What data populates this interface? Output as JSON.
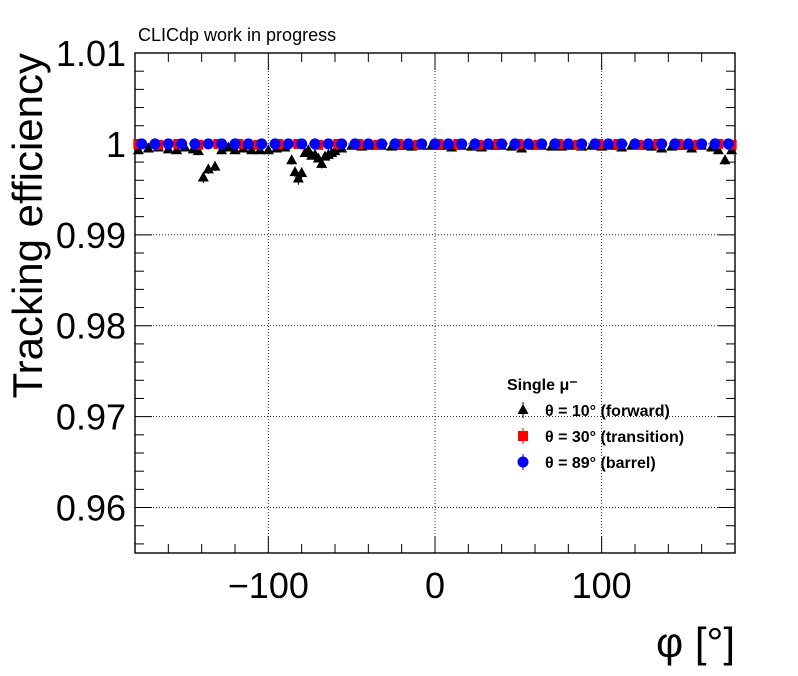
{
  "header": {
    "label": "CLICdp work in progress"
  },
  "chart_data": {
    "type": "scatter",
    "title": "",
    "xlabel": "φ [°]",
    "ylabel": "Tracking efficiency",
    "xlim": [
      -180,
      180
    ],
    "ylim": [
      0.955,
      1.01
    ],
    "xticks": [
      -100,
      0,
      100
    ],
    "xtick_labels": [
      "−100",
      "0",
      "100"
    ],
    "yticks": [
      0.96,
      0.97,
      0.98,
      0.99,
      1.0,
      1.01
    ],
    "ytick_labels": [
      "0.96",
      "0.97",
      "0.98",
      "0.99",
      "1",
      "1.01"
    ],
    "grid": true,
    "legend": {
      "title": "Single  μ⁻",
      "placement": "bottom-right"
    },
    "series": [
      {
        "name": "θ = 10° (forward)",
        "marker": "triangle",
        "color": "#000000",
        "x": [
          -178,
          -172,
          -166,
          -160,
          -155,
          -150,
          -145,
          -142,
          -139,
          -136,
          -132,
          -128,
          -124,
          -120,
          -115,
          -110,
          -105,
          -100,
          -95,
          -90,
          -86,
          -84,
          -82,
          -80,
          -78,
          -76,
          -74,
          -72,
          -70,
          -68,
          -66,
          -64,
          -62,
          -60,
          -56,
          -50,
          -44,
          -38,
          -32,
          -26,
          -20,
          -14,
          -8,
          -2,
          4,
          10,
          16,
          22,
          28,
          34,
          40,
          46,
          52,
          58,
          64,
          70,
          76,
          82,
          88,
          94,
          100,
          106,
          112,
          118,
          124,
          130,
          136,
          142,
          148,
          154,
          160,
          166,
          170,
          174,
          178
        ],
        "y": [
          0.9993,
          0.9995,
          0.9996,
          0.9994,
          0.9993,
          0.9996,
          0.9994,
          0.9992,
          0.9963,
          0.9972,
          0.9975,
          0.9993,
          0.9996,
          0.9993,
          0.9995,
          0.9993,
          0.9993,
          0.9993,
          0.9995,
          0.9996,
          0.9982,
          0.9969,
          0.9962,
          0.9968,
          0.999,
          0.9993,
          0.9987,
          0.9988,
          0.9984,
          0.9978,
          0.9986,
          0.9988,
          0.999,
          0.9992,
          0.9995,
          0.9998,
          0.9997,
          0.9998,
          0.9998,
          0.9997,
          0.9998,
          0.9997,
          0.9998,
          0.9998,
          0.9998,
          0.9996,
          0.9998,
          0.9997,
          0.9996,
          0.9998,
          0.9998,
          0.9997,
          0.9995,
          0.9998,
          0.9998,
          0.9997,
          0.9997,
          0.9998,
          0.9997,
          0.9998,
          0.9997,
          0.9998,
          0.9996,
          0.9998,
          0.9998,
          0.9997,
          0.9995,
          0.9997,
          0.9998,
          0.9995,
          0.9998,
          0.9996,
          0.9993,
          0.9982,
          0.9993
        ],
        "err": [
          0.0003,
          0.0003,
          0.0003,
          0.0003,
          0.0003,
          0.0003,
          0.0003,
          0.0003,
          0.0006,
          0.0005,
          0.0005,
          0.0003,
          0.0003,
          0.0003,
          0.0003,
          0.0003,
          0.0003,
          0.0003,
          0.0003,
          0.0003,
          0.0005,
          0.0006,
          0.0007,
          0.0006,
          0.0003,
          0.0003,
          0.0004,
          0.0004,
          0.0004,
          0.0005,
          0.0004,
          0.0004,
          0.0003,
          0.0003,
          0.0002,
          0.0002,
          0.0002,
          0.0002,
          0.0002,
          0.0002,
          0.0002,
          0.0002,
          0.0002,
          0.0002,
          0.0002,
          0.0002,
          0.0002,
          0.0002,
          0.0002,
          0.0002,
          0.0002,
          0.0002,
          0.0002,
          0.0002,
          0.0002,
          0.0002,
          0.0002,
          0.0002,
          0.0002,
          0.0002,
          0.0002,
          0.0002,
          0.0002,
          0.0002,
          0.0002,
          0.0002,
          0.0002,
          0.0002,
          0.0002,
          0.0002,
          0.0002,
          0.0002,
          0.0003,
          0.0005,
          0.0003
        ]
      },
      {
        "name": "θ = 30° (transition)",
        "marker": "square",
        "color": "#ff0000",
        "x": [
          -178,
          -166,
          -154,
          -142,
          -130,
          -118,
          -106,
          -94,
          -82,
          -70,
          -58,
          -46,
          -34,
          -22,
          -10,
          2,
          14,
          26,
          38,
          50,
          62,
          74,
          86,
          98,
          110,
          122,
          134,
          146,
          158,
          170,
          178
        ],
        "y": [
          1.0,
          0.9999,
          1.0,
          0.9999,
          1.0,
          1.0,
          0.9999,
          1.0,
          1.0,
          0.9999,
          1.0,
          1.0,
          0.9999,
          1.0,
          0.9999,
          1.0,
          1.0,
          0.9999,
          1.0,
          1.0,
          0.9999,
          1.0,
          0.9999,
          1.0,
          1.0,
          0.9999,
          1.0,
          1.0,
          0.9999,
          1.0,
          0.9999
        ],
        "err": [
          0.0001,
          0.0001,
          0.0001,
          0.0001,
          0.0001,
          0.0001,
          0.0001,
          0.0001,
          0.0001,
          0.0001,
          0.0001,
          0.0001,
          0.0001,
          0.0001,
          0.0001,
          0.0001,
          0.0001,
          0.0001,
          0.0001,
          0.0001,
          0.0001,
          0.0001,
          0.0001,
          0.0001,
          0.0001,
          0.0001,
          0.0001,
          0.0001,
          0.0001,
          0.0001,
          0.0001
        ]
      },
      {
        "name": "θ = 89° (barrel)",
        "marker": "circle",
        "color": "#0000ff",
        "x": [
          -176,
          -168,
          -160,
          -152,
          -144,
          -136,
          -128,
          -120,
          -112,
          -104,
          -96,
          -88,
          -80,
          -72,
          -64,
          -56,
          -48,
          -40,
          -32,
          -24,
          -16,
          -8,
          0,
          8,
          16,
          24,
          32,
          40,
          48,
          56,
          64,
          72,
          80,
          88,
          96,
          104,
          112,
          120,
          128,
          136,
          144,
          152,
          160,
          168,
          176
        ],
        "y": [
          1.0,
          1.0,
          1.0,
          1.0,
          1.0,
          1.0,
          1.0,
          1.0,
          1.0,
          1.0,
          1.0,
          1.0,
          1.0,
          1.0,
          1.0,
          1.0,
          1.0,
          1.0,
          1.0,
          1.0,
          1.0,
          1.0,
          1.0,
          1.0,
          1.0,
          1.0,
          1.0,
          1.0,
          1.0,
          1.0,
          1.0,
          1.0,
          1.0,
          1.0,
          1.0,
          1.0,
          1.0,
          1.0,
          1.0,
          1.0,
          1.0,
          1.0,
          1.0,
          1.0,
          1.0
        ],
        "err": [
          5e-05,
          5e-05,
          5e-05,
          5e-05,
          5e-05,
          5e-05,
          5e-05,
          5e-05,
          5e-05,
          5e-05,
          5e-05,
          5e-05,
          5e-05,
          5e-05,
          5e-05,
          5e-05,
          5e-05,
          5e-05,
          5e-05,
          5e-05,
          5e-05,
          5e-05,
          5e-05,
          5e-05,
          5e-05,
          5e-05,
          5e-05,
          5e-05,
          5e-05,
          5e-05,
          5e-05,
          5e-05,
          5e-05,
          5e-05,
          5e-05,
          5e-05,
          5e-05,
          5e-05,
          5e-05,
          5e-05,
          5e-05,
          5e-05,
          5e-05,
          5e-05,
          5e-05
        ]
      }
    ]
  }
}
